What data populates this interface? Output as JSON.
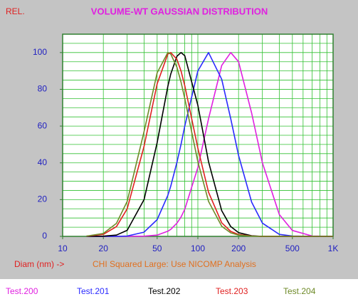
{
  "chart_data": {
    "type": "line",
    "title": "VOLUME-WT GAUSSIAN DISTRIBUTION",
    "y_label": "REL.",
    "x_label": "Diam (nm) ->",
    "annotation": "CHI Squared Large: Use NICOMP Analysis",
    "log_x": true,
    "grid": true,
    "xlim": [
      10,
      1000
    ],
    "ylim": [
      0,
      110
    ],
    "xticks": [
      10,
      20,
      50,
      100,
      200,
      500,
      {
        "value": 1000,
        "label": "1K"
      }
    ],
    "yticks": [
      0,
      20,
      40,
      60,
      80,
      100
    ],
    "xminor": [
      20,
      30,
      40,
      50,
      60,
      70,
      80,
      90,
      100,
      200,
      300,
      400,
      500,
      600,
      700,
      800,
      900
    ],
    "yminor": [
      5,
      10,
      15,
      20,
      25,
      30,
      35,
      40,
      45,
      50,
      55,
      60,
      65,
      70,
      75,
      80,
      85,
      90,
      95,
      100,
      105
    ],
    "x": [
      15,
      20,
      25,
      30,
      40,
      50,
      60,
      63,
      70,
      75,
      80,
      100,
      120,
      150,
      175,
      200,
      250,
      300,
      400,
      500,
      700,
      1000
    ],
    "series": [
      {
        "name": "Test.200",
        "color": "#e020e0",
        "values": [
          0,
          0,
          0,
          0,
          0.1,
          0.7,
          2.8,
          3.8,
          7.2,
          10.5,
          14.7,
          37.5,
          64,
          93,
          100,
          95,
          67,
          40,
          11.9,
          3.2,
          0.2,
          0
        ]
      },
      {
        "name": "Test.201",
        "color": "#2a2aff",
        "values": [
          0,
          0,
          0,
          0.2,
          2.3,
          9.1,
          22.3,
          27.3,
          40.3,
          50,
          60,
          90,
          100,
          85.5,
          64,
          44,
          18.6,
          7.2,
          1.1,
          0.2,
          0,
          0
        ]
      },
      {
        "name": "Test.202",
        "color": "#000000",
        "values": [
          0,
          0.1,
          0.7,
          3.3,
          20,
          51,
          81.6,
          88.3,
          98,
          100,
          98.3,
          71.3,
          40.6,
          14,
          5.3,
          2,
          0.3,
          0,
          0,
          0,
          0,
          0
        ]
      },
      {
        "name": "Test.203",
        "color": "#e02020",
        "values": [
          0.1,
          1.1,
          5.3,
          15,
          49,
          83,
          99.2,
          100,
          96.3,
          90,
          82,
          48,
          24,
          7.4,
          2.7,
          1,
          0.2,
          0,
          0,
          0,
          0,
          0
        ]
      },
      {
        "name": "Test.204",
        "color": "#6e8a28",
        "values": [
          0.1,
          1.6,
          7.1,
          19,
          57,
          89,
          100,
          99.2,
          92,
          84,
          75,
          40.6,
          19,
          5.5,
          1.9,
          0.7,
          0.1,
          0,
          0,
          0,
          0,
          0
        ]
      }
    ]
  }
}
